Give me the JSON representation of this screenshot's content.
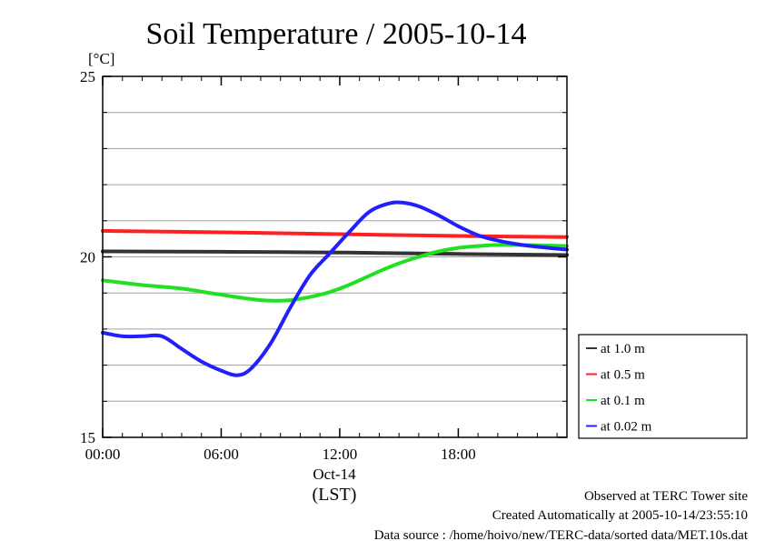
{
  "chart_data": {
    "type": "line",
    "title": "Soil Temperature / 2005-10-14",
    "ylabel": "[°C]",
    "xlabel_date": "Oct-14",
    "xlabel_tz": "(LST)",
    "ylim": [
      15,
      25
    ],
    "xlim": [
      0,
      23.5
    ],
    "yticks": [
      15,
      20,
      25
    ],
    "ytick_labels": [
      "15",
      "20",
      "25"
    ],
    "yminor_step": 1,
    "xticks": [
      0,
      6,
      12,
      18
    ],
    "xtick_labels": [
      "00:00",
      "06:00",
      "12:00",
      "18:00"
    ],
    "grid": true,
    "legend_position": "right",
    "series": [
      {
        "name": "at 1.0 m",
        "color": "#333333",
        "points": [
          [
            0,
            20.15
          ],
          [
            6,
            20.14
          ],
          [
            12,
            20.12
          ],
          [
            18,
            20.08
          ],
          [
            23.5,
            20.05
          ]
        ]
      },
      {
        "name": "at 0.5 m",
        "color": "#ff2020",
        "points": [
          [
            0,
            20.72
          ],
          [
            6,
            20.68
          ],
          [
            12,
            20.63
          ],
          [
            18,
            20.58
          ],
          [
            23.5,
            20.55
          ]
        ]
      },
      {
        "name": "at 0.1 m",
        "color": "#20e020",
        "points": [
          [
            0,
            19.35
          ],
          [
            2,
            19.22
          ],
          [
            4,
            19.12
          ],
          [
            6,
            18.95
          ],
          [
            8,
            18.8
          ],
          [
            9.5,
            18.8
          ],
          [
            11,
            18.95
          ],
          [
            12,
            19.12
          ],
          [
            13,
            19.35
          ],
          [
            14,
            19.6
          ],
          [
            15,
            19.82
          ],
          [
            16,
            20.0
          ],
          [
            17,
            20.15
          ],
          [
            18,
            20.25
          ],
          [
            19,
            20.3
          ],
          [
            20,
            20.33
          ],
          [
            21,
            20.33
          ],
          [
            22,
            20.32
          ],
          [
            23.5,
            20.3
          ]
        ]
      },
      {
        "name": "at 0.02 m",
        "color": "#2020ff",
        "points": [
          [
            0,
            17.9
          ],
          [
            1,
            17.8
          ],
          [
            2,
            17.8
          ],
          [
            3,
            17.8
          ],
          [
            4,
            17.45
          ],
          [
            5,
            17.1
          ],
          [
            6,
            16.85
          ],
          [
            6.8,
            16.72
          ],
          [
            7.5,
            16.9
          ],
          [
            8.5,
            17.6
          ],
          [
            9.5,
            18.6
          ],
          [
            10.5,
            19.5
          ],
          [
            11.5,
            20.1
          ],
          [
            12.5,
            20.7
          ],
          [
            13.5,
            21.25
          ],
          [
            14.5,
            21.48
          ],
          [
            15.2,
            21.5
          ],
          [
            16,
            21.4
          ],
          [
            17,
            21.15
          ],
          [
            18,
            20.85
          ],
          [
            19,
            20.6
          ],
          [
            20,
            20.45
          ],
          [
            21,
            20.35
          ],
          [
            22,
            20.28
          ],
          [
            23.5,
            20.2
          ]
        ]
      }
    ]
  },
  "footer": {
    "line1": "Observed at TERC Tower site",
    "line2": "Created Automatically at 2005-10-14/23:55:10",
    "line3": "Data source : /home/hoivo/new/TERC-data/sorted  data/MET.10s.dat"
  }
}
